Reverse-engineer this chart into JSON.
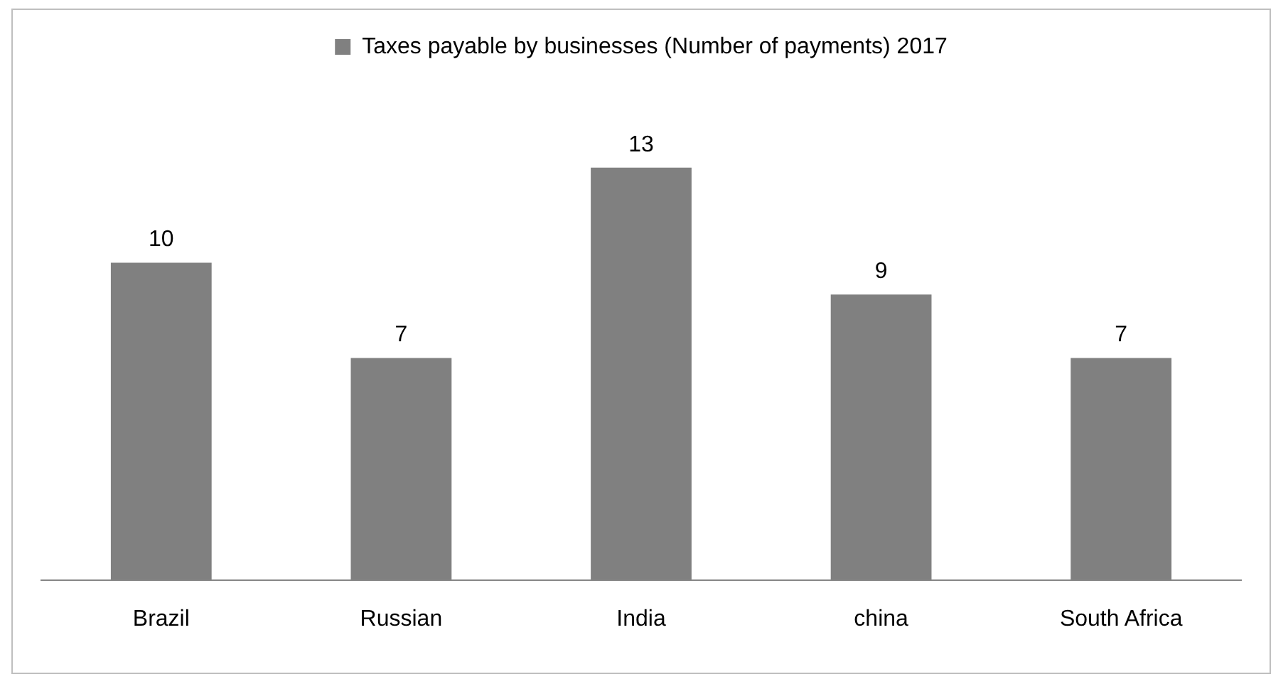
{
  "chart_data": {
    "type": "bar",
    "categories": [
      "Brazil",
      "Russian",
      "India",
      "china",
      "South Africa"
    ],
    "series": [
      {
        "name": "Taxes payable by businesses (Number of payments) 2017",
        "color": "#808080",
        "values": [
          10,
          7,
          13,
          9,
          7
        ]
      }
    ],
    "data_labels": true,
    "legend": "top",
    "grid": false
  }
}
